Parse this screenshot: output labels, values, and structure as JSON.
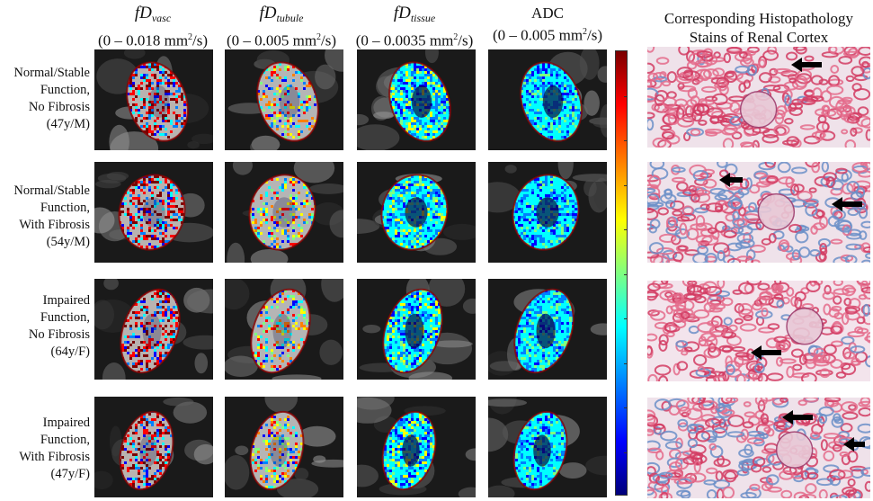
{
  "columns": [
    {
      "symbol": "fD",
      "subscript": "vasc",
      "range_pre": "(0 – 0.018 mm",
      "range_post": "/s)"
    },
    {
      "symbol": "fD",
      "subscript": "tubule",
      "range_pre": "(0 – 0.005 mm",
      "range_post": "/s)"
    },
    {
      "symbol": "fD",
      "subscript": "tissue",
      "range_pre": "(0 – 0.0035 mm",
      "range_post": "/s)"
    },
    {
      "symbol": "ADC",
      "subscript": "",
      "range_pre": "(0 – 0.005 mm",
      "range_post": "/s)"
    }
  ],
  "superscript": "2",
  "histo_title_line1": "Corresponding Histopathology",
  "histo_title_line2": "Stains of Renal Cortex",
  "rows": [
    {
      "l1": "Normal/Stable",
      "l2": "Function,",
      "l3": "No Fibrosis",
      "l4": "(47y/M)"
    },
    {
      "l1": "Normal/Stable",
      "l2": "Function,",
      "l3": "With Fibrosis",
      "l4": "(54y/M)"
    },
    {
      "l1": "Impaired",
      "l2": "Function,",
      "l3": "No Fibrosis",
      "l4": "(64y/F)"
    },
    {
      "l1": "Impaired",
      "l2": "Function,",
      "l3": "With Fibrosis",
      "l4": "(47y/F)"
    }
  ],
  "colormap": [
    "#7a0000",
    "#ff0000",
    "#ff8000",
    "#ffff00",
    "#80ff80",
    "#00ffff",
    "#0080ff",
    "#0000ff",
    "#00007a"
  ],
  "icons": {
    "arrow": "arrow-left-icon"
  }
}
